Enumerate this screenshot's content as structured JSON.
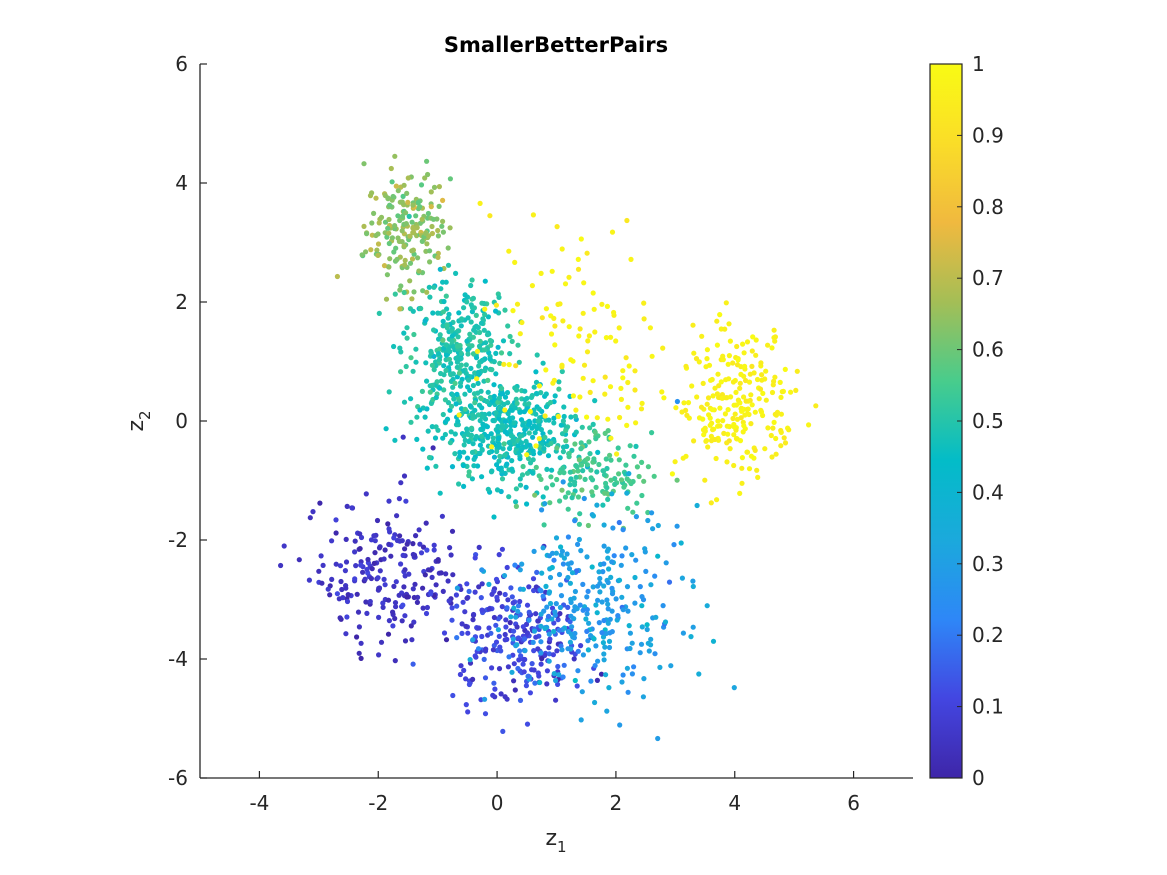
{
  "chart_data": {
    "type": "scatter",
    "title": "SmallerBetterPairs",
    "xlabel": "z",
    "xlabel_sub": "1",
    "ylabel": "z",
    "ylabel_sub": "2",
    "xlim": [
      -5,
      7
    ],
    "ylim": [
      -6,
      6
    ],
    "xticks": [
      -4,
      -2,
      0,
      2,
      4,
      6
    ],
    "yticks": [
      -6,
      -4,
      -2,
      0,
      2,
      4,
      6
    ],
    "grid": false,
    "colormap": "parula",
    "colorbar": {
      "range": [
        0,
        1
      ],
      "ticks": [
        "0",
        "0.1",
        "0.2",
        "0.3",
        "0.4",
        "0.5",
        "0.6",
        "0.7",
        "0.8",
        "0.9",
        "1"
      ],
      "colors": [
        "#3e26a8",
        "#4346e1",
        "#2e87f7",
        "#1ba9dc",
        "#03bcc8",
        "#48cc8c",
        "#a4be56",
        "#f0b93f",
        "#fadd28",
        "#f9fb14"
      ]
    },
    "clusters": [
      {
        "cx": -1.5,
        "cy": 3.2,
        "sx": 0.35,
        "sy": 0.5,
        "n": 200,
        "value": 0.64,
        "vjit": 0.04
      },
      {
        "cx": -0.7,
        "cy": 1.2,
        "sx": 0.45,
        "sy": 0.6,
        "n": 330,
        "value": 0.49,
        "vjit": 0.03
      },
      {
        "cx": 0.2,
        "cy": -0.2,
        "sx": 0.55,
        "sy": 0.45,
        "n": 420,
        "value": 0.47,
        "vjit": 0.03
      },
      {
        "cx": 1.6,
        "cy": -0.9,
        "sx": 0.5,
        "sy": 0.35,
        "n": 140,
        "value": 0.54,
        "vjit": 0.03
      },
      {
        "cx": 1.4,
        "cy": 1.3,
        "sx": 0.8,
        "sy": 1.1,
        "n": 110,
        "value": 0.97,
        "vjit": 0.02
      },
      {
        "cx": 4.0,
        "cy": 0.3,
        "sx": 0.5,
        "sy": 0.6,
        "n": 240,
        "value": 0.97,
        "vjit": 0.02
      },
      {
        "cx": -1.8,
        "cy": -2.6,
        "sx": 0.6,
        "sy": 0.65,
        "n": 220,
        "value": 0.05,
        "vjit": 0.03
      },
      {
        "cx": 0.3,
        "cy": -3.6,
        "sx": 0.6,
        "sy": 0.55,
        "n": 260,
        "value": 0.1,
        "vjit": 0.04
      },
      {
        "cx": 1.6,
        "cy": -3.1,
        "sx": 0.75,
        "sy": 0.8,
        "n": 300,
        "value": 0.3,
        "vjit": 0.05
      }
    ]
  }
}
